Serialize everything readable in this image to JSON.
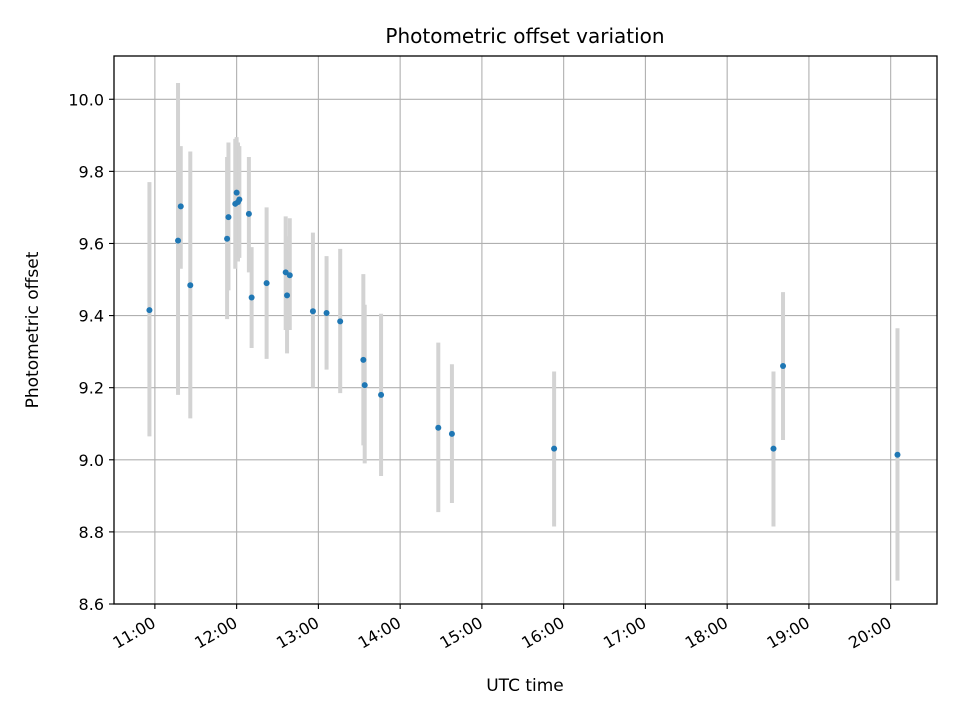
{
  "chart_data": {
    "type": "scatter",
    "title": "Photometric offset variation",
    "xlabel": "UTC time",
    "ylabel": "Photometric offset",
    "x_ticks": [
      "11:00",
      "12:00",
      "13:00",
      "14:00",
      "15:00",
      "16:00",
      "17:00",
      "18:00",
      "19:00",
      "20:00"
    ],
    "y_ticks": [
      "8.6",
      "8.8",
      "9.0",
      "9.2",
      "9.4",
      "9.6",
      "9.8",
      "10.0"
    ],
    "xlim": [
      "10:30",
      "20:34"
    ],
    "ylim": [
      8.6,
      10.12
    ],
    "grid": true,
    "colors": {
      "point": "#1f77b4",
      "errorbar": "#d3d3d3",
      "grid": "#b0b0b0"
    },
    "points": [
      {
        "x": "10:56",
        "y": 9.415,
        "yerr_low": 9.065,
        "yerr_high": 9.77
      },
      {
        "x": "11:17",
        "y": 9.608,
        "yerr_low": 9.18,
        "yerr_high": 10.045
      },
      {
        "x": "11:19",
        "y": 9.703,
        "yerr_low": 9.53,
        "yerr_high": 9.87
      },
      {
        "x": "11:26",
        "y": 9.484,
        "yerr_low": 9.115,
        "yerr_high": 9.855
      },
      {
        "x": "11:53",
        "y": 9.613,
        "yerr_low": 9.39,
        "yerr_high": 9.84
      },
      {
        "x": "11:54",
        "y": 9.673,
        "yerr_low": 9.47,
        "yerr_high": 9.88
      },
      {
        "x": "11:59",
        "y": 9.71,
        "yerr_low": 9.53,
        "yerr_high": 9.89
      },
      {
        "x": "12:00",
        "y": 9.741,
        "yerr_low": 9.56,
        "yerr_high": 9.895
      },
      {
        "x": "12:01",
        "y": 9.715,
        "yerr_low": 9.55,
        "yerr_high": 9.88
      },
      {
        "x": "12:02",
        "y": 9.722,
        "yerr_low": 9.56,
        "yerr_high": 9.87
      },
      {
        "x": "12:09",
        "y": 9.682,
        "yerr_low": 9.52,
        "yerr_high": 9.84
      },
      {
        "x": "12:11",
        "y": 9.45,
        "yerr_low": 9.31,
        "yerr_high": 9.59
      },
      {
        "x": "12:22",
        "y": 9.49,
        "yerr_low": 9.28,
        "yerr_high": 9.7
      },
      {
        "x": "12:36",
        "y": 9.52,
        "yerr_low": 9.36,
        "yerr_high": 9.675
      },
      {
        "x": "12:37",
        "y": 9.456,
        "yerr_low": 9.295,
        "yerr_high": 9.62
      },
      {
        "x": "12:39",
        "y": 9.512,
        "yerr_low": 9.36,
        "yerr_high": 9.67
      },
      {
        "x": "12:56",
        "y": 9.412,
        "yerr_low": 9.2,
        "yerr_high": 9.63
      },
      {
        "x": "13:06",
        "y": 9.407,
        "yerr_low": 9.25,
        "yerr_high": 9.565
      },
      {
        "x": "13:16",
        "y": 9.384,
        "yerr_low": 9.185,
        "yerr_high": 9.585
      },
      {
        "x": "13:33",
        "y": 9.277,
        "yerr_low": 9.04,
        "yerr_high": 9.515
      },
      {
        "x": "13:34",
        "y": 9.207,
        "yerr_low": 8.99,
        "yerr_high": 9.43
      },
      {
        "x": "13:46",
        "y": 9.18,
        "yerr_low": 8.955,
        "yerr_high": 9.405
      },
      {
        "x": "14:28",
        "y": 9.089,
        "yerr_low": 8.855,
        "yerr_high": 9.325
      },
      {
        "x": "14:38",
        "y": 9.072,
        "yerr_low": 8.88,
        "yerr_high": 9.265
      },
      {
        "x": "15:53",
        "y": 9.031,
        "yerr_low": 8.815,
        "yerr_high": 9.245
      },
      {
        "x": "18:34",
        "y": 9.031,
        "yerr_low": 8.815,
        "yerr_high": 9.245
      },
      {
        "x": "18:41",
        "y": 9.26,
        "yerr_low": 9.055,
        "yerr_high": 9.465
      },
      {
        "x": "20:05",
        "y": 9.014,
        "yerr_low": 8.665,
        "yerr_high": 9.365
      }
    ]
  }
}
